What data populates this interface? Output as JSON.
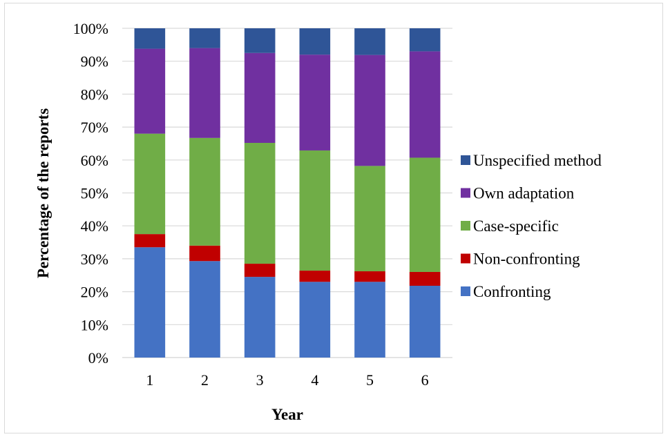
{
  "chart_data": {
    "type": "bar",
    "stacked": true,
    "title": "",
    "xlabel": "Year",
    "ylabel": "Percentage of the reports",
    "categories": [
      "1",
      "2",
      "3",
      "4",
      "5",
      "6"
    ],
    "ylim": [
      0,
      100
    ],
    "y_ticks": [
      "0%",
      "10%",
      "20%",
      "30%",
      "40%",
      "50%",
      "60%",
      "70%",
      "80%",
      "90%",
      "100%"
    ],
    "grid": true,
    "legend_position": "right",
    "series": [
      {
        "name": "Confronting",
        "color": "#4472C4",
        "values": [
          33.5,
          29.3,
          24.5,
          23,
          23,
          21.8
        ]
      },
      {
        "name": "Non-confronting",
        "color": "#C00000",
        "values": [
          4,
          4.7,
          4,
          3.4,
          3.2,
          4.2
        ]
      },
      {
        "name": "Case-specific",
        "color": "#70AD47",
        "values": [
          30.5,
          32.7,
          36.7,
          36.5,
          32,
          34.7
        ]
      },
      {
        "name": "Own adaptation",
        "color": "#7030A0",
        "values": [
          25.8,
          27.3,
          27.3,
          29.1,
          33.7,
          32.3
        ]
      },
      {
        "name": "Unspecified method",
        "color": "#2F5597",
        "values": [
          6.2,
          6,
          7.5,
          8,
          8.1,
          7
        ]
      }
    ],
    "legend_order": [
      "Unspecified method",
      "Own adaptation",
      "Case-specific",
      "Non-confronting",
      "Confronting"
    ]
  }
}
